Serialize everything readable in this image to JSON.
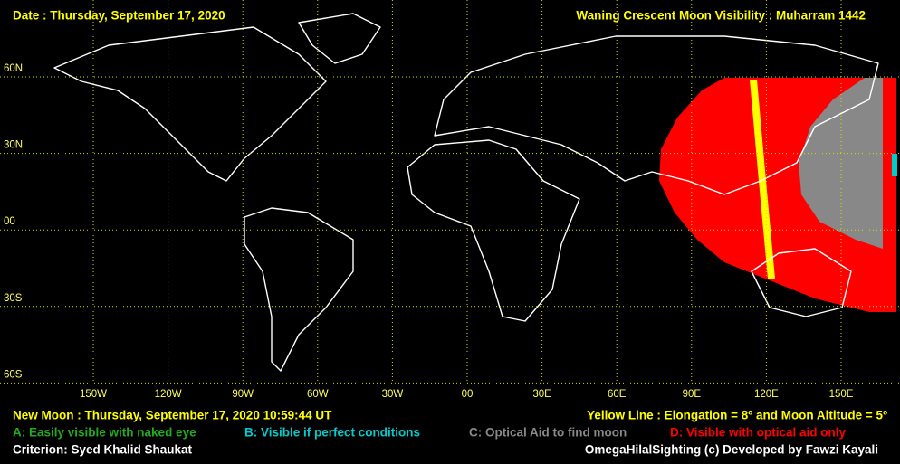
{
  "header": {
    "date": "Date : Thursday, September 17, 2020",
    "title": "Waning Crescent Moon Visibility : Muharram 1442"
  },
  "lat_labels": [
    "60N",
    "30N",
    "00",
    "30S",
    "60S"
  ],
  "lon_labels": [
    "150W",
    "120W",
    "90W",
    "60W",
    "30W",
    "00",
    "30E",
    "60E",
    "90E",
    "120E",
    "150E"
  ],
  "footer": {
    "new_moon": "New Moon : Thursday, September 17, 2020  10:59:44  UT",
    "yellow_line": "Yellow Line : Elongation = 8º  and Moon Altitude = 5º",
    "criterion": "Criterion: Syed Khalid Shaukat",
    "credit": "OmegaHilalSighting  (c)  Developed by Fawzi Kayali"
  },
  "legend": [
    {
      "label": "A: Easily visible with naked eye",
      "color": "#22aa22"
    },
    {
      "label": "B: Visible if perfect conditions",
      "color": "#00cccc"
    },
    {
      "label": "C: Optical Aid to find moon",
      "color": "#888888"
    },
    {
      "label": "D: Visible with optical aid only",
      "color": "#ff0000"
    }
  ]
}
